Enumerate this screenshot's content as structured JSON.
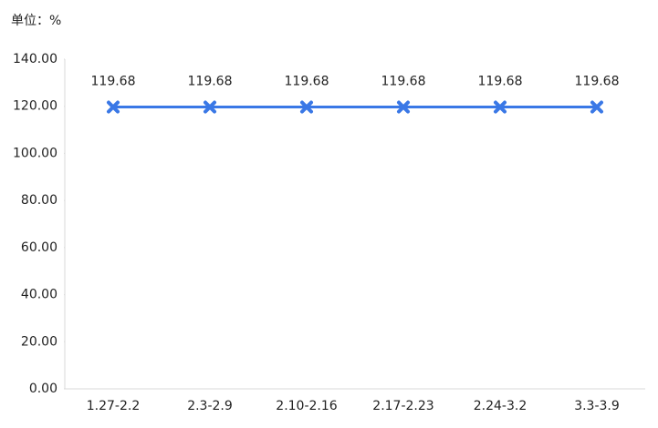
{
  "chart_data": {
    "type": "line",
    "unit_label": "单位：%",
    "categories": [
      "1.27-2.2",
      "2.3-2.9",
      "2.10-2.16",
      "2.17-2.23",
      "2.24-3.2",
      "3.3-3.9"
    ],
    "series": [
      {
        "color": "#3a78e6",
        "values": [
          119.68,
          119.68,
          119.68,
          119.68,
          119.68,
          119.68
        ]
      }
    ],
    "ylim": [
      0,
      140
    ],
    "yticks": [
      {
        "value": 0,
        "label": "0.00"
      },
      {
        "value": 20,
        "label": "20.00"
      },
      {
        "value": 40,
        "label": "40.00"
      },
      {
        "value": 60,
        "label": "60.00"
      },
      {
        "value": 80,
        "label": "80.00"
      },
      {
        "value": 100,
        "label": "100.00"
      },
      {
        "value": 120,
        "label": "120.00"
      },
      {
        "value": 140,
        "label": "140.00"
      }
    ],
    "grid": false
  }
}
